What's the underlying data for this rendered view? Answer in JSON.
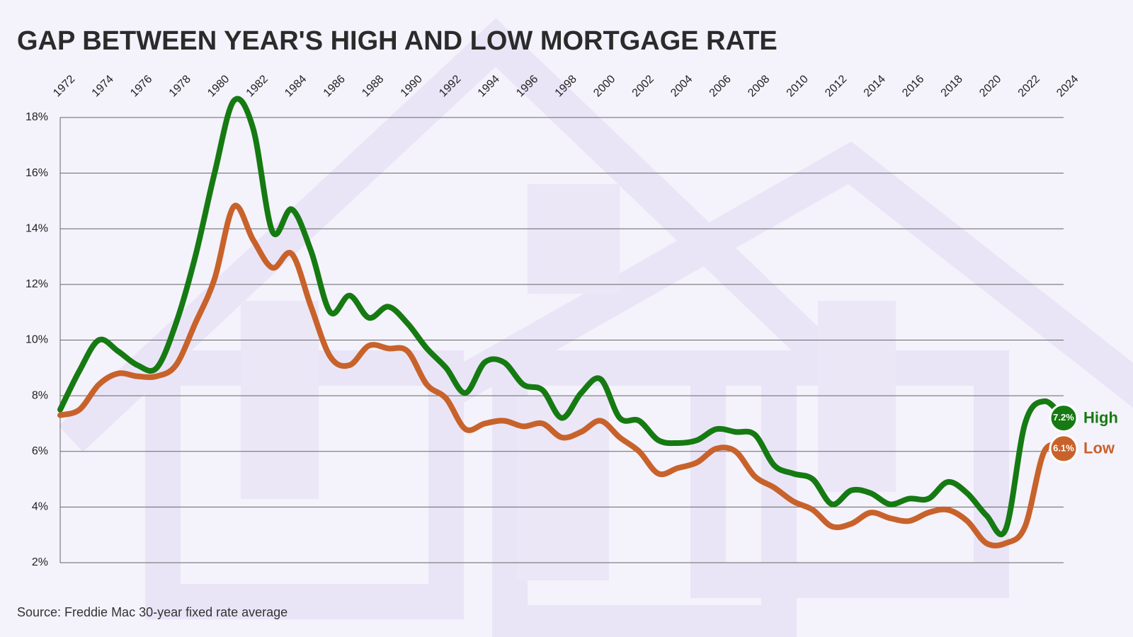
{
  "chart_data": {
    "type": "line",
    "title": "GAP BETWEEN YEAR'S HIGH AND LOW MORTGAGE RATE",
    "source": "Source: Freddie Mac 30-year fixed rate average",
    "x": [
      1972,
      1973,
      1974,
      1975,
      1976,
      1977,
      1978,
      1979,
      1980,
      1981,
      1982,
      1983,
      1984,
      1985,
      1986,
      1987,
      1988,
      1989,
      1990,
      1991,
      1992,
      1993,
      1994,
      1995,
      1996,
      1997,
      1998,
      1999,
      2000,
      2001,
      2002,
      2003,
      2004,
      2005,
      2006,
      2007,
      2008,
      2009,
      2010,
      2011,
      2012,
      2013,
      2014,
      2015,
      2016,
      2017,
      2018,
      2019,
      2020,
      2021,
      2022,
      2023,
      2024
    ],
    "series": [
      {
        "name": "High",
        "color": "#167a12",
        "values": [
          7.5,
          8.9,
          10.0,
          9.6,
          9.1,
          9.0,
          10.6,
          13.0,
          16.0,
          18.6,
          17.6,
          13.9,
          14.7,
          13.2,
          11.0,
          11.6,
          10.8,
          11.2,
          10.6,
          9.7,
          9.0,
          8.1,
          9.2,
          9.2,
          8.4,
          8.2,
          7.2,
          8.1,
          8.6,
          7.2,
          7.1,
          6.4,
          6.3,
          6.4,
          6.8,
          6.7,
          6.6,
          5.5,
          5.2,
          5.0,
          4.1,
          4.6,
          4.5,
          4.1,
          4.3,
          4.3,
          4.9,
          4.5,
          3.7,
          3.2,
          7.0,
          7.8,
          7.2
        ],
        "value_labels": [
          null,
          null,
          null,
          null,
          null,
          null,
          null,
          null,
          null,
          null,
          null,
          null,
          null,
          null,
          null,
          null,
          null,
          null,
          null,
          null,
          null,
          null,
          null,
          null,
          null,
          null,
          null,
          null,
          null,
          null,
          null,
          null,
          null,
          null,
          null,
          null,
          null,
          null,
          null,
          null,
          null,
          null,
          null,
          null,
          null,
          null,
          null,
          null,
          null,
          null,
          null,
          null,
          "7.2%"
        ]
      },
      {
        "name": "Low",
        "color": "#c8622b",
        "values": [
          7.3,
          7.5,
          8.4,
          8.8,
          8.7,
          8.7,
          9.1,
          10.6,
          12.2,
          14.8,
          13.6,
          12.6,
          13.1,
          11.2,
          9.4,
          9.1,
          9.8,
          9.7,
          9.6,
          8.4,
          7.9,
          6.8,
          7.0,
          7.1,
          6.9,
          7.0,
          6.5,
          6.7,
          7.1,
          6.5,
          6.0,
          5.2,
          5.4,
          5.6,
          6.1,
          6.0,
          5.1,
          4.7,
          4.2,
          3.9,
          3.3,
          3.4,
          3.8,
          3.6,
          3.5,
          3.8,
          3.9,
          3.5,
          2.7,
          2.7,
          3.3,
          6.0,
          6.1
        ],
        "value_labels": [
          null,
          null,
          null,
          null,
          null,
          null,
          null,
          null,
          null,
          null,
          null,
          null,
          null,
          null,
          null,
          null,
          null,
          null,
          null,
          null,
          null,
          null,
          null,
          null,
          null,
          null,
          null,
          null,
          null,
          null,
          null,
          null,
          null,
          null,
          null,
          null,
          null,
          null,
          null,
          null,
          null,
          null,
          null,
          null,
          null,
          null,
          null,
          null,
          null,
          null,
          null,
          null,
          "6.1%"
        ]
      }
    ],
    "xlim": [
      1972,
      2024
    ],
    "xticks": [
      1972,
      1974,
      1976,
      1978,
      1980,
      1982,
      1984,
      1986,
      1988,
      1990,
      1992,
      1994,
      1996,
      1998,
      2000,
      2002,
      2004,
      2006,
      2008,
      2010,
      2012,
      2014,
      2016,
      2018,
      2020,
      2022,
      2024
    ],
    "ylim": [
      2,
      18
    ],
    "yticks": [
      {
        "value": 2,
        "label": "2%"
      },
      {
        "value": 4,
        "label": "4%"
      },
      {
        "value": 6,
        "label": "6%"
      },
      {
        "value": 8,
        "label": "8%"
      },
      {
        "value": 10,
        "label": "10%"
      },
      {
        "value": 12,
        "label": "12%"
      },
      {
        "value": 14,
        "label": "14%"
      },
      {
        "value": 16,
        "label": "16%"
      },
      {
        "value": 18,
        "label": "18%"
      }
    ],
    "grid": true
  }
}
